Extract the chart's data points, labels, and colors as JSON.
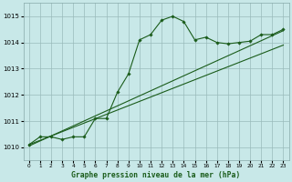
{
  "title": "Graphe pression niveau de la mer (hPa)",
  "bg_color": "#c8e8e8",
  "grid_color": "#99bbbb",
  "line_color": "#1a5c1a",
  "marker_color": "#1a5c1a",
  "xlim": [
    -0.5,
    23.5
  ],
  "ylim": [
    1009.5,
    1015.5
  ],
  "yticks": [
    1010,
    1011,
    1012,
    1013,
    1014,
    1015
  ],
  "xticks": [
    0,
    1,
    2,
    3,
    4,
    5,
    6,
    7,
    8,
    9,
    10,
    11,
    12,
    13,
    14,
    15,
    16,
    17,
    18,
    19,
    20,
    21,
    22,
    23
  ],
  "curve_wiggly_x": [
    0,
    1,
    2,
    3,
    4,
    5,
    6,
    7,
    8,
    9,
    10,
    11,
    12,
    13,
    14,
    15,
    16,
    17,
    18,
    19,
    20,
    21,
    22,
    23
  ],
  "curve_wiggly_y": [
    1010.1,
    1010.4,
    1010.4,
    1010.3,
    1010.4,
    1010.4,
    1011.1,
    1011.1,
    1012.1,
    1012.8,
    1014.1,
    1014.3,
    1014.85,
    1015.0,
    1014.8,
    1014.1,
    1014.2,
    1014.0,
    1013.95,
    1014.0,
    1014.05,
    1014.3,
    1014.3,
    1014.5
  ],
  "curve_trend1_x": [
    0,
    23
  ],
  "curve_trend1_y": [
    1010.05,
    1014.45
  ],
  "curve_trend2_x": [
    0,
    23
  ],
  "curve_trend2_y": [
    1010.1,
    1013.9
  ]
}
